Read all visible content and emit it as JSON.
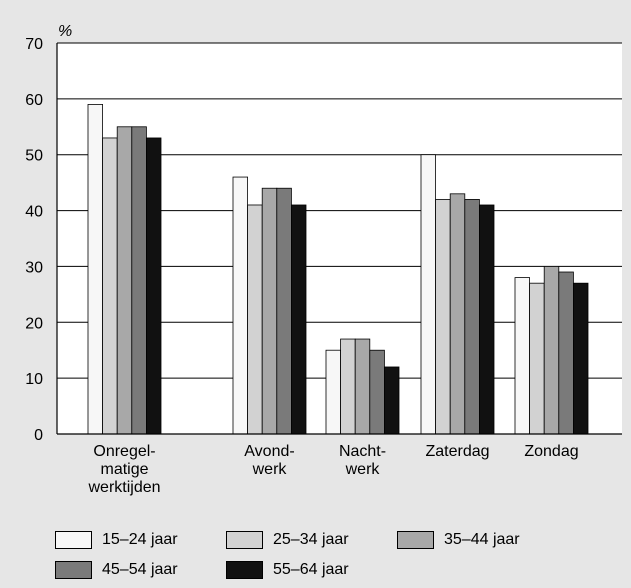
{
  "chart_data": {
    "type": "bar",
    "ylabel": "%",
    "ylim": [
      0,
      70
    ],
    "yticks": [
      0,
      10,
      20,
      30,
      40,
      50,
      60,
      70
    ],
    "grid": true,
    "legend_position": "bottom",
    "categories": [
      {
        "lines": [
          "Onregel-",
          "matige",
          "werktijden"
        ]
      },
      {
        "lines": [
          "Avond-",
          "werk"
        ]
      },
      {
        "lines": [
          "Nacht-",
          "werk"
        ]
      },
      {
        "lines": [
          "Zaterdag"
        ]
      },
      {
        "lines": [
          "Zondag"
        ]
      }
    ],
    "series": [
      {
        "name": "15–24 jaar",
        "color": "#f7f7f7",
        "values": [
          59,
          46,
          15,
          50,
          28
        ]
      },
      {
        "name": "25–34 jaar",
        "color": "#d2d2d2",
        "values": [
          53,
          41,
          17,
          42,
          27
        ]
      },
      {
        "name": "35–44 jaar",
        "color": "#a8a8a8",
        "values": [
          55,
          44,
          17,
          43,
          30
        ]
      },
      {
        "name": "45–54 jaar",
        "color": "#7a7a7a",
        "values": [
          55,
          44,
          15,
          42,
          29
        ]
      },
      {
        "name": "55–64 jaar",
        "color": "#111111",
        "values": [
          53,
          41,
          12,
          41,
          27
        ]
      }
    ]
  }
}
